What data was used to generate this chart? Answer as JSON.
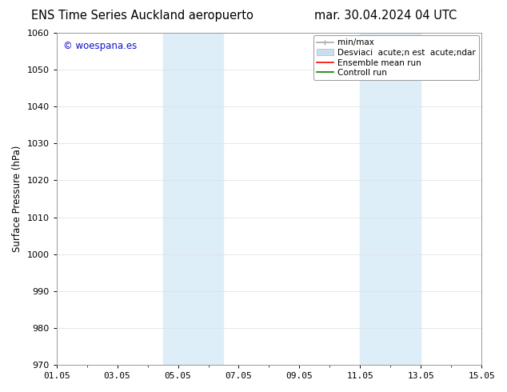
{
  "title_left": "ENS Time Series Auckland aeropuerto",
  "title_right": "mar. 30.04.2024 04 UTC",
  "ylabel": "Surface Pressure (hPa)",
  "ylim": [
    970,
    1060
  ],
  "yticks": [
    970,
    980,
    990,
    1000,
    1010,
    1020,
    1030,
    1040,
    1050,
    1060
  ],
  "xtick_labels": [
    "01.05",
    "03.05",
    "05.05",
    "07.05",
    "09.05",
    "11.05",
    "13.05",
    "15.05"
  ],
  "xtick_positions": [
    0,
    2,
    4,
    6,
    8,
    10,
    12,
    14
  ],
  "minor_xtick_positions": [
    0,
    1,
    2,
    3,
    4,
    5,
    6,
    7,
    8,
    9,
    10,
    11,
    12,
    13,
    14
  ],
  "xlim": [
    0,
    14
  ],
  "shaded_regions": [
    {
      "start": 3.5,
      "end": 5.5
    },
    {
      "start": 10.0,
      "end": 12.0
    }
  ],
  "shade_color": "#ddeef8",
  "watermark_text": "© woespana.es",
  "watermark_color": "#1111cc",
  "background_color": "#ffffff",
  "grid_color": "#dddddd",
  "spine_color": "#999999",
  "title_fontsize": 10.5,
  "axis_fontsize": 8.5,
  "tick_fontsize": 8,
  "legend_fontsize": 7.5,
  "legend_label_0": "min/max",
  "legend_label_1": "Desviaci  acute;n est  acute;ndar",
  "legend_label_2": "Ensemble mean run",
  "legend_label_3": "Controll run",
  "legend_color_0": "#aaaaaa",
  "legend_color_1": "#ccdded",
  "legend_color_2": "red",
  "legend_color_3": "green"
}
